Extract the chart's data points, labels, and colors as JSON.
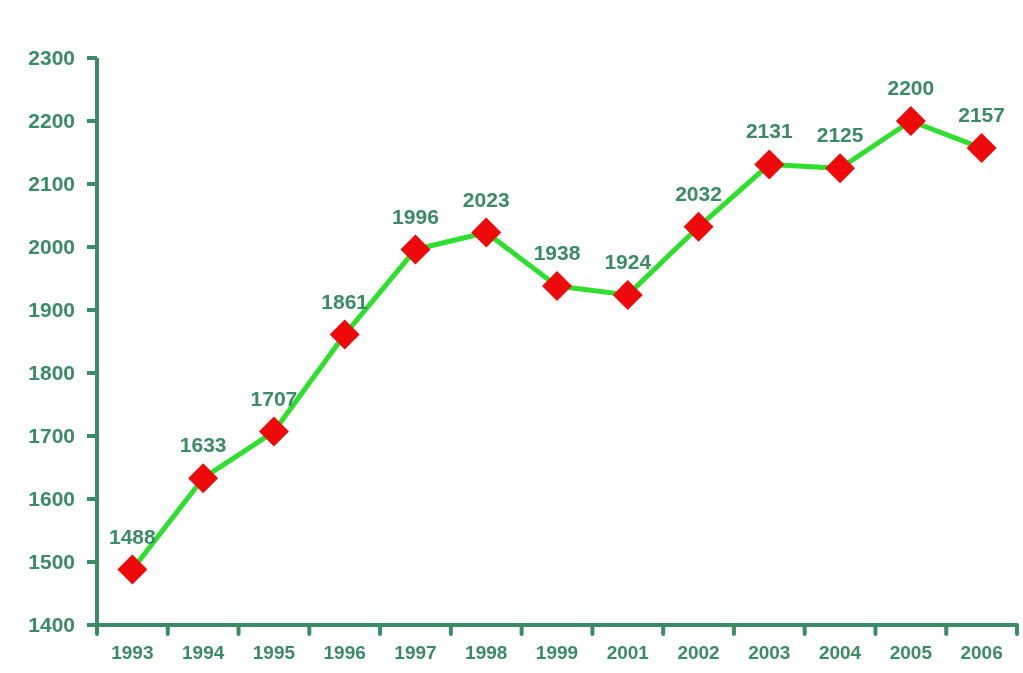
{
  "chart_data": {
    "type": "line",
    "categories": [
      "1993",
      "1994",
      "1995",
      "1996",
      "1997",
      "1998",
      "1999",
      "2001",
      "2002",
      "2003",
      "2004",
      "2005",
      "2006"
    ],
    "values": [
      1488,
      1633,
      1707,
      1861,
      1996,
      2023,
      1938,
      1924,
      2032,
      2131,
      2125,
      2200,
      2157
    ],
    "color": "#2ee02e",
    "colors": [
      "#ee0a0a",
      "#ee0a0a",
      "#ee0a0a",
      "#ee0a0a",
      "#ee0a0a",
      "#ee0a0a",
      "#ee0a0a",
      "#ee0a0a",
      "#ee0a0a",
      "#ee0a0a",
      "#ee0a0a",
      "#ee0a0a",
      "#ee0a0a"
    ],
    "ylim": [
      1400,
      2300
    ],
    "yticks": [
      1400,
      1500,
      1600,
      1700,
      1800,
      1900,
      2000,
      2100,
      2200,
      2300
    ],
    "marker": "diamond",
    "line_style": "solid",
    "data_labels": true
  }
}
